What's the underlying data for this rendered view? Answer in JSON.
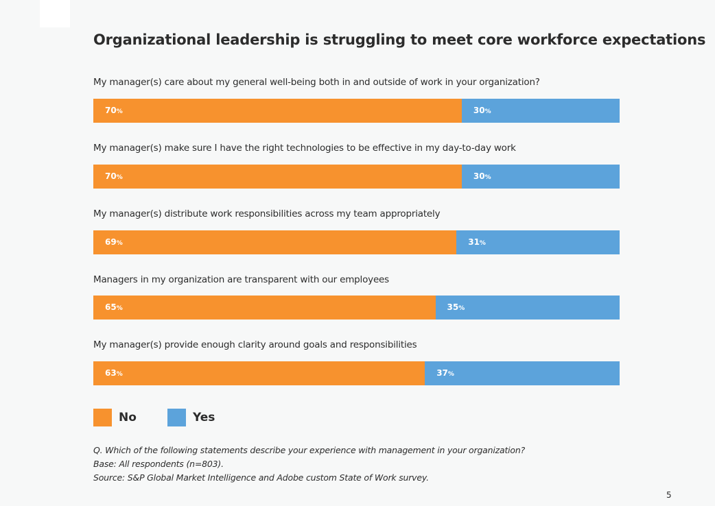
{
  "page": {
    "title": "Organizational leadership is struggling to meet core workforce expectations",
    "page_number": "5"
  },
  "colors": {
    "no": "#f7922e",
    "yes": "#5ca3db",
    "background": "#f7f8f8"
  },
  "legend": {
    "no_label": "No",
    "yes_label": "Yes"
  },
  "footnotes": {
    "question": "Q. Which of the following statements describe your experience with management in your organization?",
    "base": "Base: All respondents (n=803).",
    "source": "Source: S&P Global Market Intelligence and Adobe custom State of Work survey."
  },
  "chart_data": {
    "type": "bar",
    "orientation": "horizontal",
    "stacked": true,
    "unit": "%",
    "categories": [
      "My manager(s) care about my general well-being both in and outside of work in your organization?",
      "My manager(s) make sure I have the right technologies to be effective in my day-to-day work",
      "My manager(s) distribute work responsibilities across my team appropriately",
      "Managers in my organization are transparent with our employees",
      "My manager(s) provide enough clarity around goals and responsibilities"
    ],
    "series": [
      {
        "name": "No",
        "values": [
          70,
          70,
          69,
          65,
          63
        ]
      },
      {
        "name": "Yes",
        "values": [
          30,
          30,
          31,
          35,
          37
        ]
      }
    ],
    "xlim": [
      0,
      100
    ],
    "legend_position": "bottom-left",
    "grid": false
  }
}
